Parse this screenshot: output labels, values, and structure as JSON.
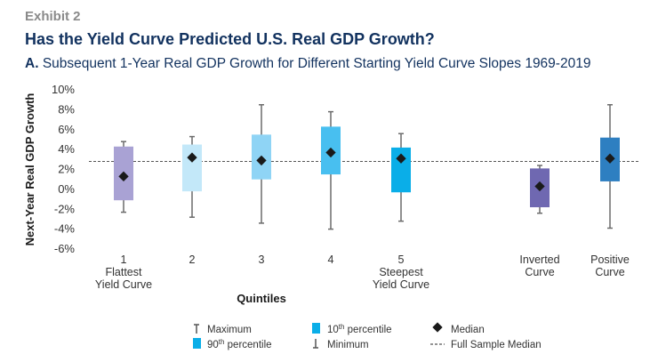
{
  "header": {
    "exhibit": "Exhibit 2",
    "title": "Has the Yield Curve Predicted U.S. Real GDP Growth?",
    "subtitle_letter": "A.",
    "subtitle_text": "Subsequent 1-Year Real GDP Growth for Different Starting Yield Curve Slopes 1969-2019"
  },
  "chart_data": {
    "type": "box",
    "ylabel": "Next-Year Real GDP Growth",
    "xlabel": "Quintiles",
    "ylim": [
      -6,
      10
    ],
    "yticks": [
      {
        "v": 10,
        "label": "10%"
      },
      {
        "v": 8,
        "label": "8%"
      },
      {
        "v": 6,
        "label": "6%"
      },
      {
        "v": 4,
        "label": "4%"
      },
      {
        "v": 2,
        "label": "2%"
      },
      {
        "v": 0,
        "label": "0%"
      },
      {
        "v": -2,
        "label": "-2%"
      },
      {
        "v": -4,
        "label": "-4%"
      },
      {
        "v": -6,
        "label": "-6%"
      }
    ],
    "full_sample_median": 2.8,
    "boxes": [
      {
        "labels": [
          "1",
          "Flattest",
          "Yield Curve"
        ],
        "min": -2.3,
        "p10": -1.1,
        "median": 1.3,
        "p90": 4.3,
        "max": 4.8,
        "color": "#a9a2d4"
      },
      {
        "labels": [
          "2"
        ],
        "min": -2.8,
        "p10": -0.2,
        "median": 3.2,
        "p90": 4.5,
        "max": 5.3,
        "color": "#c3e8f9"
      },
      {
        "labels": [
          "3"
        ],
        "min": -3.4,
        "p10": 1.0,
        "median": 2.9,
        "p90": 5.5,
        "max": 8.5,
        "color": "#8fd4f5"
      },
      {
        "labels": [
          "4"
        ],
        "min": -4.0,
        "p10": 1.5,
        "median": 3.7,
        "p90": 6.3,
        "max": 7.8,
        "color": "#48bff0"
      },
      {
        "labels": [
          "5",
          "Steepest",
          "Yield Curve"
        ],
        "min": -3.2,
        "p10": -0.3,
        "median": 3.1,
        "p90": 4.2,
        "max": 5.6,
        "color": "#0aaee8"
      },
      {
        "labels": [
          "Inverted",
          "Curve"
        ],
        "min": -2.4,
        "p10": -1.8,
        "median": 0.3,
        "p90": 2.1,
        "max": 2.4,
        "color": "#6f68b1"
      },
      {
        "labels": [
          "Positive",
          "Curve"
        ],
        "min": -3.9,
        "p10": 0.8,
        "median": 3.1,
        "p90": 5.2,
        "max": 8.5,
        "color": "#2e7fc1"
      }
    ],
    "legend": {
      "maximum": "Maximum",
      "p90_prefix": "90",
      "p90_suffix": "th",
      "p90_rest": " percentile",
      "p10_prefix": "10",
      "p10_suffix": "th",
      "p10_rest": " percentile",
      "minimum": "Minimum",
      "median": "Median",
      "full_sample_median": "Full Sample Median",
      "swatch_color": "#0aaee8"
    }
  }
}
